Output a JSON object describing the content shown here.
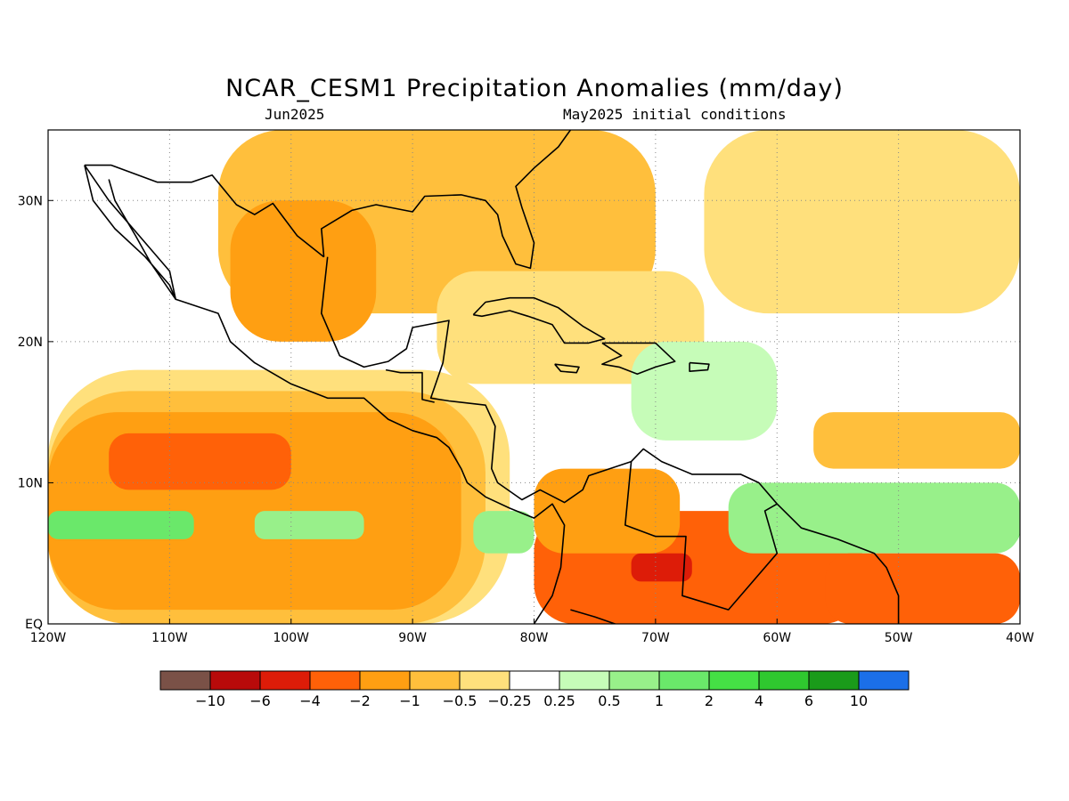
{
  "title": "NCAR_CESM1 Precipitation Anomalies (mm/day)",
  "subtitle_left": "Jun2025",
  "subtitle_right": "May2025 initial conditions",
  "map": {
    "lon_range": [
      -120,
      -40
    ],
    "lat_range": [
      0,
      35
    ],
    "x_ticks": [
      {
        "lon": -120,
        "label": "120W"
      },
      {
        "lon": -110,
        "label": "110W"
      },
      {
        "lon": -100,
        "label": "100W"
      },
      {
        "lon": -90,
        "label": "90W"
      },
      {
        "lon": -80,
        "label": "80W"
      },
      {
        "lon": -70,
        "label": "70W"
      },
      {
        "lon": -60,
        "label": "60W"
      },
      {
        "lon": -50,
        "label": "50W"
      },
      {
        "lon": -40,
        "label": "40W"
      }
    ],
    "y_ticks": [
      {
        "lat": 0,
        "label": "EQ"
      },
      {
        "lat": 10,
        "label": "10N"
      },
      {
        "lat": 20,
        "label": "20N"
      },
      {
        "lat": 30,
        "label": "30N"
      }
    ],
    "grid": "dotted"
  },
  "colorbar": {
    "colors": [
      "#7a5147",
      "#b80a0a",
      "#dd1c08",
      "#ff6108",
      "#ff9f12",
      "#ffbf3c",
      "#ffe07c",
      "#ffffff",
      "#c6fcb8",
      "#98f08a",
      "#6ae86a",
      "#45e045",
      "#2fc82f",
      "#1a9b1a",
      "#1b6fe8"
    ],
    "labels": [
      "-10",
      "-6",
      "-4",
      "-2",
      "-1",
      "-0.5",
      "-0.25",
      "0.25",
      "0.5",
      "1",
      "2",
      "4",
      "6",
      "10"
    ]
  },
  "anomaly_fields": [
    {
      "name": "pacific-drying-outer",
      "color": "#ffe07c",
      "lon": -120,
      "lat": 0,
      "w": 38,
      "h": 18
    },
    {
      "name": "pacific-drying",
      "color": "#ffbf3c",
      "lon": -120,
      "lat": 0,
      "w": 36,
      "h": 16.5
    },
    {
      "name": "pacific-drying-core",
      "color": "#ff9f12",
      "lon": -120,
      "lat": 1,
      "w": 34,
      "h": 14
    },
    {
      "name": "pacific-drying-max",
      "color": "#ff6108",
      "lon": -115,
      "lat": 9.5,
      "w": 15,
      "h": 4
    },
    {
      "name": "pacific-itcz-wet",
      "color": "#6ae86a",
      "lon": -120,
      "lat": 6,
      "w": 12,
      "h": 2
    },
    {
      "name": "pacific-itcz-wet-2",
      "color": "#98f08a",
      "lon": -103,
      "lat": 6,
      "w": 9,
      "h": 2
    },
    {
      "name": "pacific-itcz-wet-3",
      "color": "#98f08a",
      "lon": -85,
      "lat": 5,
      "w": 5,
      "h": 3
    },
    {
      "name": "gulf-dry",
      "color": "#ffbf3c",
      "lon": -106,
      "lat": 22,
      "w": 36,
      "h": 13
    },
    {
      "name": "mexico-dry",
      "color": "#ff9f12",
      "lon": -105,
      "lat": 20,
      "w": 12,
      "h": 10
    },
    {
      "name": "caribbean-dry",
      "color": "#ffe07c",
      "lon": -88,
      "lat": 17,
      "w": 22,
      "h": 8
    },
    {
      "name": "sa-north-dry",
      "color": "#ff6108",
      "lon": -80,
      "lat": 0,
      "w": 27,
      "h": 8
    },
    {
      "name": "sa-north-core",
      "color": "#dd1c08",
      "lon": -72,
      "lat": 3,
      "w": 5,
      "h": 2
    },
    {
      "name": "sa-coast-dry",
      "color": "#ff9f12",
      "lon": -80,
      "lat": 5,
      "w": 12,
      "h": 6
    },
    {
      "name": "atlantic-itcz-wet",
      "color": "#45e045",
      "lon": -61,
      "lat": 5.5,
      "w": 21,
      "h": 3
    },
    {
      "name": "atlantic-wet-outer",
      "color": "#98f08a",
      "lon": -64,
      "lat": 5,
      "w": 24,
      "h": 5
    },
    {
      "name": "atlantic-dry-south",
      "color": "#ff6108",
      "lon": -56,
      "lat": 0,
      "w": 16,
      "h": 5
    },
    {
      "name": "atlantic-dry-north",
      "color": "#ffbf3c",
      "lon": -57,
      "lat": 11,
      "w": 17,
      "h": 4
    },
    {
      "name": "caribbean-wet",
      "color": "#c6fcb8",
      "lon": -72,
      "lat": 13,
      "w": 12,
      "h": 7
    },
    {
      "name": "atlantic-dry-upper",
      "color": "#ffe07c",
      "lon": -66,
      "lat": 22,
      "w": 26,
      "h": 13
    }
  ],
  "coastlines": [
    {
      "name": "north-america-pacific-coast",
      "points": [
        [
          -117,
          32.5
        ],
        [
          -115,
          30
        ],
        [
          -113,
          28
        ],
        [
          -110,
          25
        ],
        [
          -109.5,
          23
        ],
        [
          -106,
          22
        ],
        [
          -105,
          20
        ],
        [
          -103,
          18.5
        ],
        [
          -100,
          17
        ],
        [
          -97,
          16
        ],
        [
          -94,
          16
        ],
        [
          -92,
          14.5
        ],
        [
          -90,
          13.7
        ],
        [
          -88,
          13.2
        ],
        [
          -87,
          12.5
        ],
        [
          -86,
          11
        ],
        [
          -85.5,
          10
        ],
        [
          -84,
          9
        ],
        [
          -82,
          8.2
        ],
        [
          -80,
          7.5
        ],
        [
          -78.5,
          8.5
        ],
        [
          -77.5,
          7
        ],
        [
          -77.8,
          4
        ],
        [
          -78.5,
          2
        ],
        [
          -80,
          0
        ]
      ]
    },
    {
      "name": "gulf-coast",
      "points": [
        [
          -97,
          26
        ],
        [
          -97.5,
          22
        ],
        [
          -96,
          19
        ],
        [
          -94,
          18.2
        ],
        [
          -92,
          18.6
        ],
        [
          -90.5,
          19.5
        ],
        [
          -90,
          21
        ],
        [
          -87,
          21.5
        ],
        [
          -87.5,
          18.5
        ],
        [
          -88.5,
          16
        ],
        [
          -87,
          15.8
        ],
        [
          -84,
          15.5
        ],
        [
          -83.2,
          14
        ],
        [
          -83.5,
          11
        ],
        [
          -83,
          10
        ],
        [
          -81,
          8.8
        ],
        [
          -79.5,
          9.5
        ],
        [
          -77.5,
          8.6
        ],
        [
          -76,
          9.5
        ],
        [
          -75.5,
          10.5
        ],
        [
          -72,
          11.5
        ],
        [
          -71,
          12.4
        ],
        [
          -69.5,
          11.5
        ],
        [
          -67,
          10.6
        ],
        [
          -63,
          10.6
        ],
        [
          -61.5,
          10
        ],
        [
          -60,
          8.5
        ],
        [
          -58,
          6.8
        ],
        [
          -55,
          6
        ],
        [
          -52,
          5
        ],
        [
          -51,
          4
        ],
        [
          -50,
          2
        ],
        [
          -50,
          0
        ]
      ]
    },
    {
      "name": "us-gulf-coast",
      "points": [
        [
          -97.3,
          26
        ],
        [
          -97.5,
          28
        ],
        [
          -95,
          29.3
        ],
        [
          -93,
          29.7
        ],
        [
          -90,
          29.2
        ],
        [
          -89,
          30.3
        ],
        [
          -86,
          30.4
        ],
        [
          -84,
          30
        ],
        [
          -83,
          29
        ],
        [
          -82.6,
          27.5
        ],
        [
          -81.5,
          25.5
        ],
        [
          -80.3,
          25.2
        ],
        [
          -80,
          27
        ],
        [
          -81,
          29.5
        ],
        [
          -81.5,
          31
        ],
        [
          -80,
          32.3
        ],
        [
          -78,
          33.8
        ],
        [
          -77,
          35
        ]
      ]
    },
    {
      "name": "cuba",
      "points": [
        [
          -85,
          21.9
        ],
        [
          -84,
          22.8
        ],
        [
          -82,
          23.1
        ],
        [
          -80,
          23.1
        ],
        [
          -78,
          22.4
        ],
        [
          -76,
          21.1
        ],
        [
          -74.2,
          20.2
        ],
        [
          -75.5,
          19.9
        ],
        [
          -77.5,
          19.9
        ],
        [
          -78.5,
          21.2
        ],
        [
          -80.5,
          21.8
        ],
        [
          -82,
          22.2
        ],
        [
          -84.3,
          21.8
        ],
        [
          -85,
          21.9
        ]
      ]
    },
    {
      "name": "hispaniola",
      "points": [
        [
          -74.4,
          19.9
        ],
        [
          -72.5,
          19.9
        ],
        [
          -70,
          19.9
        ],
        [
          -68.4,
          18.6
        ],
        [
          -70,
          18.2
        ],
        [
          -71.5,
          17.7
        ],
        [
          -73,
          18.2
        ],
        [
          -74.4,
          18.4
        ],
        [
          -72.8,
          19
        ],
        [
          -74.4,
          19.9
        ]
      ]
    },
    {
      "name": "puerto-rico",
      "points": [
        [
          -67.2,
          18.5
        ],
        [
          -65.6,
          18.4
        ],
        [
          -65.7,
          18
        ],
        [
          -67.2,
          17.9
        ],
        [
          -67.2,
          18.5
        ]
      ]
    },
    {
      "name": "jamaica",
      "points": [
        [
          -78.3,
          18.4
        ],
        [
          -76.3,
          18.2
        ],
        [
          -76.5,
          17.8
        ],
        [
          -77.8,
          17.9
        ],
        [
          -78.3,
          18.4
        ]
      ]
    },
    {
      "name": "baja-california",
      "points": [
        [
          -117,
          32.5
        ],
        [
          -116.3,
          30
        ],
        [
          -114.5,
          28
        ],
        [
          -112,
          26
        ],
        [
          -110,
          24
        ],
        [
          -109.5,
          23
        ],
        [
          -110.3,
          24
        ],
        [
          -111.5,
          25.5
        ],
        [
          -112.8,
          27.5
        ],
        [
          -114.5,
          30
        ],
        [
          -115,
          31.5
        ]
      ]
    },
    {
      "name": "us-mexico-border",
      "points": [
        [
          -117,
          32.5
        ],
        [
          -114.8,
          32.5
        ],
        [
          -111,
          31.3
        ],
        [
          -108.2,
          31.3
        ],
        [
          -106.5,
          31.8
        ],
        [
          -104.5,
          29.7
        ],
        [
          -103,
          29
        ],
        [
          -101.5,
          29.8
        ],
        [
          -99.5,
          27.5
        ],
        [
          -97.3,
          26
        ]
      ]
    },
    {
      "name": "central-america-borders",
      "points": [
        [
          -92.2,
          18
        ],
        [
          -91,
          17.8
        ],
        [
          -89.2,
          17.8
        ],
        [
          -89.2,
          15.9
        ],
        [
          -88.2,
          15.7
        ]
      ]
    },
    {
      "name": "sa-interior-border",
      "points": [
        [
          -72,
          11.5
        ],
        [
          -72.5,
          7
        ],
        [
          -70,
          6.2
        ],
        [
          -67.5,
          6.2
        ],
        [
          -67.8,
          2
        ],
        [
          -64,
          1
        ],
        [
          -60,
          5
        ],
        [
          -61,
          8
        ],
        [
          -60,
          8.5
        ]
      ]
    },
    {
      "name": "sa-interior-border-2",
      "points": [
        [
          -77,
          1
        ],
        [
          -75,
          0.5
        ],
        [
          -70,
          -1
        ]
      ]
    }
  ]
}
